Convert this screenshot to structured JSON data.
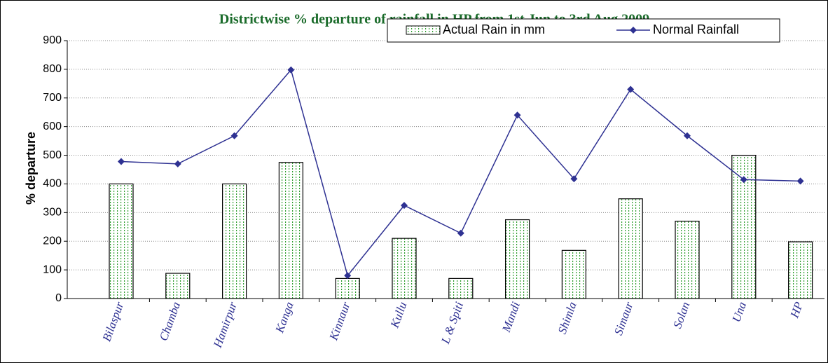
{
  "chart_data": {
    "type": "bar",
    "title": "Districtwise % departure of rainfall in HP from 1st Jun to 3rd Aug 2009",
    "y_label": "% departure",
    "categories": [
      "Bilaspur",
      "Chamba",
      "Hamirpur",
      "Kanga",
      "Kinnaur",
      "Kullu",
      "L & Spiti",
      "Mandi",
      "Shimla",
      "Simaur",
      "Solan",
      "Una",
      "HP"
    ],
    "series": [
      {
        "name": "Actual Rain in mm",
        "type": "bar",
        "color": "#2e9e2e",
        "values": [
          400,
          88,
          400,
          475,
          70,
          210,
          70,
          275,
          168,
          348,
          270,
          500,
          198
        ]
      },
      {
        "name": "Normal Rainfall",
        "type": "line",
        "color": "#2e3192",
        "values": [
          478,
          470,
          568,
          798,
          80,
          325,
          228,
          640,
          418,
          730,
          568,
          415,
          410
        ]
      }
    ],
    "ylim": [
      0,
      900
    ],
    "yticks": [
      0,
      100,
      200,
      300,
      400,
      500,
      600,
      700,
      800,
      900
    ],
    "grid": true,
    "legend": "top-right"
  }
}
